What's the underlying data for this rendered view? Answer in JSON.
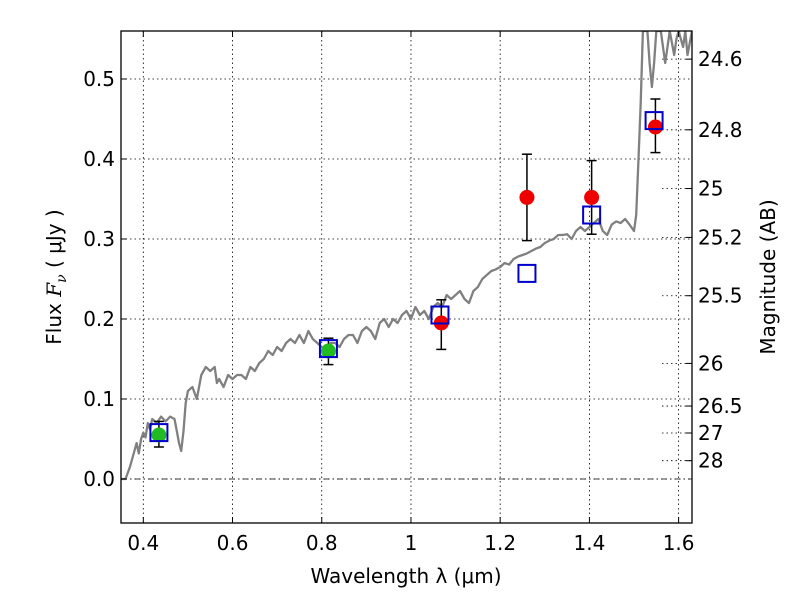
{
  "chart_data": {
    "type": "scatter",
    "xlabel": "Wavelength  λ (μm)",
    "ylabel_prefix": "Flux  ",
    "ylabel_symbol": "F",
    "ylabel_sub": "ν",
    "ylabel_unit": "  ( μJy )",
    "y2label": "Magnitude (AB)",
    "xlim": [
      0.35,
      1.63
    ],
    "ylim": [
      -0.055,
      0.56
    ],
    "grid": true,
    "zero_line_y": 0.0,
    "x_ticks": [
      0.4,
      0.6,
      0.8,
      1.0,
      1.2,
      1.4,
      1.6
    ],
    "x_tick_labels": [
      "0.4",
      "0.6",
      "0.8",
      "1",
      "1.2",
      "1.4",
      "1.6"
    ],
    "y_ticks": [
      0.0,
      0.1,
      0.2,
      0.3,
      0.4,
      0.5
    ],
    "y_tick_labels": [
      "0.0",
      "0.1",
      "0.2",
      "0.3",
      "0.4",
      "0.5"
    ],
    "mag_ticks": [
      {
        "label": "24.6",
        "flux": 0.5248
      },
      {
        "label": "24.8",
        "flux": 0.4365
      },
      {
        "label": "25",
        "flux": 0.3631
      },
      {
        "label": "25.2",
        "flux": 0.302
      },
      {
        "label": "25.5",
        "flux": 0.2291
      },
      {
        "label": "26",
        "flux": 0.1445
      },
      {
        "label": "26.5",
        "flux": 0.0912
      },
      {
        "label": "27",
        "flux": 0.0575
      },
      {
        "label": "28",
        "flux": 0.0229
      }
    ],
    "series": [
      {
        "role": "template_spectrum",
        "color": "#808080",
        "points": [
          [
            0.35,
            0.0
          ],
          [
            0.36,
            0.0
          ],
          [
            0.37,
            0.015
          ],
          [
            0.38,
            0.035
          ],
          [
            0.385,
            0.045
          ],
          [
            0.39,
            0.032
          ],
          [
            0.395,
            0.05
          ],
          [
            0.4,
            0.058
          ],
          [
            0.405,
            0.052
          ],
          [
            0.41,
            0.07
          ],
          [
            0.415,
            0.062
          ],
          [
            0.42,
            0.075
          ],
          [
            0.43,
            0.07
          ],
          [
            0.44,
            0.078
          ],
          [
            0.45,
            0.072
          ],
          [
            0.46,
            0.078
          ],
          [
            0.47,
            0.075
          ],
          [
            0.475,
            0.06
          ],
          [
            0.48,
            0.045
          ],
          [
            0.485,
            0.035
          ],
          [
            0.49,
            0.06
          ],
          [
            0.495,
            0.095
          ],
          [
            0.5,
            0.11
          ],
          [
            0.51,
            0.115
          ],
          [
            0.52,
            0.1
          ],
          [
            0.53,
            0.13
          ],
          [
            0.54,
            0.14
          ],
          [
            0.55,
            0.135
          ],
          [
            0.56,
            0.14
          ],
          [
            0.565,
            0.12
          ],
          [
            0.57,
            0.125
          ],
          [
            0.58,
            0.115
          ],
          [
            0.59,
            0.13
          ],
          [
            0.6,
            0.125
          ],
          [
            0.61,
            0.13
          ],
          [
            0.62,
            0.13
          ],
          [
            0.63,
            0.125
          ],
          [
            0.64,
            0.14
          ],
          [
            0.65,
            0.135
          ],
          [
            0.66,
            0.145
          ],
          [
            0.67,
            0.15
          ],
          [
            0.68,
            0.16
          ],
          [
            0.69,
            0.155
          ],
          [
            0.7,
            0.165
          ],
          [
            0.71,
            0.16
          ],
          [
            0.72,
            0.17
          ],
          [
            0.73,
            0.175
          ],
          [
            0.74,
            0.17
          ],
          [
            0.75,
            0.18
          ],
          [
            0.76,
            0.17
          ],
          [
            0.77,
            0.185
          ],
          [
            0.78,
            0.175
          ],
          [
            0.79,
            0.17
          ],
          [
            0.8,
            0.165
          ],
          [
            0.81,
            0.16
          ],
          [
            0.82,
            0.17
          ],
          [
            0.83,
            0.17
          ],
          [
            0.84,
            0.165
          ],
          [
            0.85,
            0.175
          ],
          [
            0.86,
            0.18
          ],
          [
            0.87,
            0.18
          ],
          [
            0.88,
            0.17
          ],
          [
            0.89,
            0.185
          ],
          [
            0.9,
            0.19
          ],
          [
            0.91,
            0.185
          ],
          [
            0.92,
            0.175
          ],
          [
            0.93,
            0.195
          ],
          [
            0.94,
            0.2
          ],
          [
            0.95,
            0.19
          ],
          [
            0.96,
            0.2
          ],
          [
            0.97,
            0.195
          ],
          [
            0.98,
            0.205
          ],
          [
            0.99,
            0.21
          ],
          [
            1.0,
            0.2
          ],
          [
            1.01,
            0.215
          ],
          [
            1.02,
            0.205
          ],
          [
            1.03,
            0.21
          ],
          [
            1.04,
            0.2
          ],
          [
            1.05,
            0.215
          ],
          [
            1.06,
            0.22
          ],
          [
            1.07,
            0.215
          ],
          [
            1.08,
            0.23
          ],
          [
            1.09,
            0.225
          ],
          [
            1.1,
            0.23
          ],
          [
            1.11,
            0.235
          ],
          [
            1.12,
            0.225
          ],
          [
            1.13,
            0.22
          ],
          [
            1.14,
            0.235
          ],
          [
            1.15,
            0.24
          ],
          [
            1.16,
            0.25
          ],
          [
            1.17,
            0.255
          ],
          [
            1.18,
            0.26
          ],
          [
            1.19,
            0.262
          ],
          [
            1.2,
            0.265
          ],
          [
            1.21,
            0.27
          ],
          [
            1.22,
            0.268
          ],
          [
            1.23,
            0.275
          ],
          [
            1.24,
            0.278
          ],
          [
            1.25,
            0.28
          ],
          [
            1.26,
            0.282
          ],
          [
            1.27,
            0.285
          ],
          [
            1.28,
            0.288
          ],
          [
            1.29,
            0.29
          ],
          [
            1.3,
            0.295
          ],
          [
            1.31,
            0.298
          ],
          [
            1.32,
            0.3
          ],
          [
            1.33,
            0.305
          ],
          [
            1.34,
            0.305
          ],
          [
            1.35,
            0.306
          ],
          [
            1.36,
            0.3
          ],
          [
            1.37,
            0.31
          ],
          [
            1.38,
            0.315
          ],
          [
            1.39,
            0.31
          ],
          [
            1.4,
            0.315
          ],
          [
            1.41,
            0.32
          ],
          [
            1.42,
            0.325
          ],
          [
            1.43,
            0.31
          ],
          [
            1.44,
            0.305
          ],
          [
            1.45,
            0.318
          ],
          [
            1.46,
            0.322
          ],
          [
            1.47,
            0.32
          ],
          [
            1.48,
            0.325
          ],
          [
            1.49,
            0.318
          ],
          [
            1.5,
            0.31
          ],
          [
            1.505,
            0.33
          ],
          [
            1.51,
            0.4
          ],
          [
            1.515,
            0.47
          ],
          [
            1.52,
            0.56
          ],
          [
            1.53,
            0.56
          ],
          [
            1.535,
            0.52
          ],
          [
            1.54,
            0.49
          ],
          [
            1.545,
            0.52
          ],
          [
            1.55,
            0.56
          ],
          [
            1.56,
            0.56
          ],
          [
            1.57,
            0.52
          ],
          [
            1.575,
            0.54
          ],
          [
            1.58,
            0.56
          ],
          [
            1.59,
            0.53
          ],
          [
            1.595,
            0.55
          ],
          [
            1.6,
            0.56
          ],
          [
            1.61,
            0.54
          ],
          [
            1.615,
            0.56
          ],
          [
            1.62,
            0.53
          ],
          [
            1.63,
            0.56
          ]
        ]
      },
      {
        "role": "model_squares",
        "color": "#0000cc",
        "points": [
          [
            0.435,
            0.058
          ],
          [
            0.815,
            0.163
          ],
          [
            1.065,
            0.205
          ],
          [
            1.26,
            0.257
          ],
          [
            1.405,
            0.33
          ],
          [
            1.545,
            0.448
          ]
        ]
      },
      {
        "role": "observed_red",
        "color": "#ee0000",
        "points": [
          {
            "x": 1.068,
            "y": 0.195,
            "err_low": 0.162,
            "err_high": 0.224
          },
          {
            "x": 1.26,
            "y": 0.352,
            "err_low": 0.298,
            "err_high": 0.406
          },
          {
            "x": 1.405,
            "y": 0.352,
            "err_low": 0.306,
            "err_high": 0.398
          },
          {
            "x": 1.548,
            "y": 0.44,
            "err_low": 0.408,
            "err_high": 0.475
          }
        ]
      },
      {
        "role": "observed_green",
        "color": "#22bb22",
        "points": [
          {
            "x": 0.435,
            "y": 0.055,
            "err_low": 0.04,
            "err_high": 0.072
          },
          {
            "x": 0.815,
            "y": 0.16,
            "err_low": 0.143,
            "err_high": 0.176
          }
        ]
      }
    ]
  }
}
